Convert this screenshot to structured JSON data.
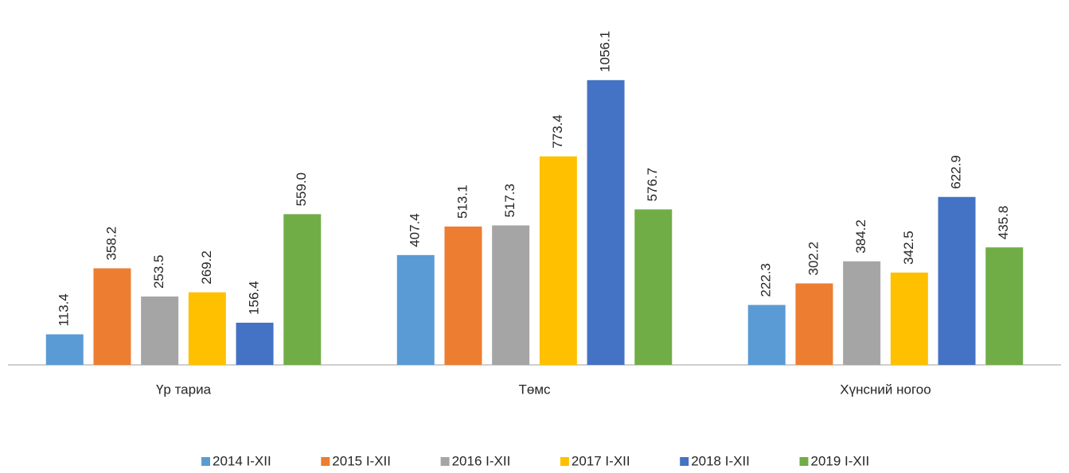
{
  "chart_data": {
    "type": "bar",
    "categories": [
      "Үр тариа",
      "Төмс",
      "Хүнсний ногоо"
    ],
    "series": [
      {
        "name": "2014 I-XII",
        "color": "#5b9bd5",
        "values": [
          113.4,
          407.4,
          222.3
        ],
        "value_labels": [
          "113.4",
          "407.4",
          "222.3"
        ]
      },
      {
        "name": "2015 I-XII",
        "color": "#ed7d31",
        "values": [
          358.2,
          513.1,
          302.2
        ],
        "value_labels": [
          "358.2",
          "513.1",
          "302.2"
        ]
      },
      {
        "name": "2016 I-XII",
        "color": "#a5a5a5",
        "values": [
          253.5,
          517.3,
          384.2
        ],
        "value_labels": [
          "253.5",
          "517.3",
          "384.2"
        ]
      },
      {
        "name": "2017 I-XII",
        "color": "#ffc000",
        "values": [
          269.2,
          773.4,
          342.5
        ],
        "value_labels": [
          "269.2",
          "773.4",
          "342.5"
        ]
      },
      {
        "name": "2018 I-XII",
        "color": "#4472c4",
        "values": [
          156.4,
          1056.1,
          622.9
        ],
        "value_labels": [
          "156.4",
          "1056.1",
          "622.9"
        ]
      },
      {
        "name": "2019 I-XII",
        "color": "#70ad47",
        "values": [
          559,
          576.7,
          435.8
        ],
        "value_labels": [
          "559.0",
          "576.7",
          "435.8"
        ]
      }
    ],
    "ylim": [
      0,
      1200
    ],
    "legend": "bottom"
  }
}
